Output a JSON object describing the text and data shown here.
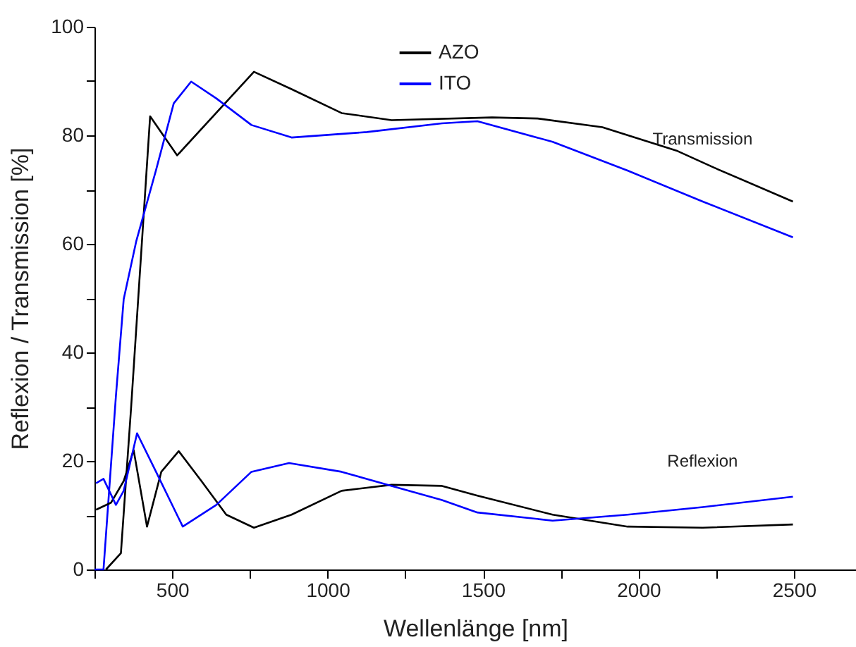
{
  "chart_data": {
    "type": "line",
    "xlabel": "Wellenlänge [nm]",
    "ylabel": "Reflexion / Transmission [%]",
    "xlim": [
      250,
      2700
    ],
    "ylim": [
      0,
      100
    ],
    "xticks": [
      {
        "value": 250,
        "label": null
      },
      500,
      {
        "value": 750,
        "label": null
      },
      1000,
      {
        "value": 1250,
        "label": null
      },
      1500,
      {
        "value": 1750,
        "label": null
      },
      2000,
      {
        "value": 2250,
        "label": null
      },
      2500
    ],
    "yticks": [
      0,
      {
        "value": 10,
        "label": null
      },
      20,
      {
        "value": 30,
        "label": null
      },
      40,
      {
        "value": 50,
        "label": null
      },
      60,
      {
        "value": 70,
        "label": null
      },
      80,
      {
        "value": 90,
        "label": null
      },
      100
    ],
    "grid": false,
    "legend": "top",
    "marker": "none",
    "line_style": "solid",
    "series": [
      {
        "name": "AZO",
        "color": "#000000",
        "x": [
          287,
          335,
          368,
          429,
          516,
          763,
          884,
          1045,
          1206,
          1529,
          1676,
          1884,
          2126,
          2241,
          2497
        ],
        "values": [
          0,
          3,
          30,
          83.5,
          76.3,
          91.7,
          88.5,
          84.1,
          82.8,
          83.3,
          83.1,
          81.5,
          77.1,
          74.1,
          67.8
        ]
      },
      {
        "name": "ITO",
        "color": "#0000ff",
        "x": [
          250,
          279,
          319,
          344,
          384,
          448,
          505,
          561,
          642,
          755,
          884,
          1126,
          1368,
          1482,
          1724,
          1965,
          2207,
          2497
        ],
        "values": [
          0,
          0,
          32,
          49.8,
          60.4,
          73.6,
          85.9,
          89.9,
          86.8,
          81.9,
          79.6,
          80.6,
          82.2,
          82.6,
          78.8,
          73.5,
          67.8,
          61.2
        ]
      },
      {
        "color": "#000000",
        "x": [
          255,
          303,
          344,
          376,
          419,
          465,
          521,
          594,
          674,
          763,
          884,
          1045,
          1206,
          1368,
          1482,
          1724,
          1965,
          2207,
          2497
        ],
        "values": [
          11,
          12.3,
          16.3,
          22,
          7.9,
          18,
          21.8,
          16.3,
          10.1,
          7.7,
          10.1,
          14.5,
          15.6,
          15.4,
          13.6,
          10.1,
          7.9,
          7.7,
          8.3
        ]
      },
      {
        "color": "#0000ff",
        "x": [
          255,
          279,
          319,
          344,
          387,
          448,
          534,
          642,
          755,
          876,
          1045,
          1206,
          1368,
          1482,
          1724,
          1965,
          2207,
          2497
        ],
        "values": [
          15.9,
          16.7,
          11.9,
          14.5,
          25.1,
          18,
          7.9,
          11.9,
          18,
          19.6,
          18,
          15.4,
          12.8,
          10.5,
          9.0,
          10.1,
          11.5,
          13.4
        ]
      }
    ],
    "annotations": [
      "Transmission",
      "Reflexion"
    ]
  }
}
